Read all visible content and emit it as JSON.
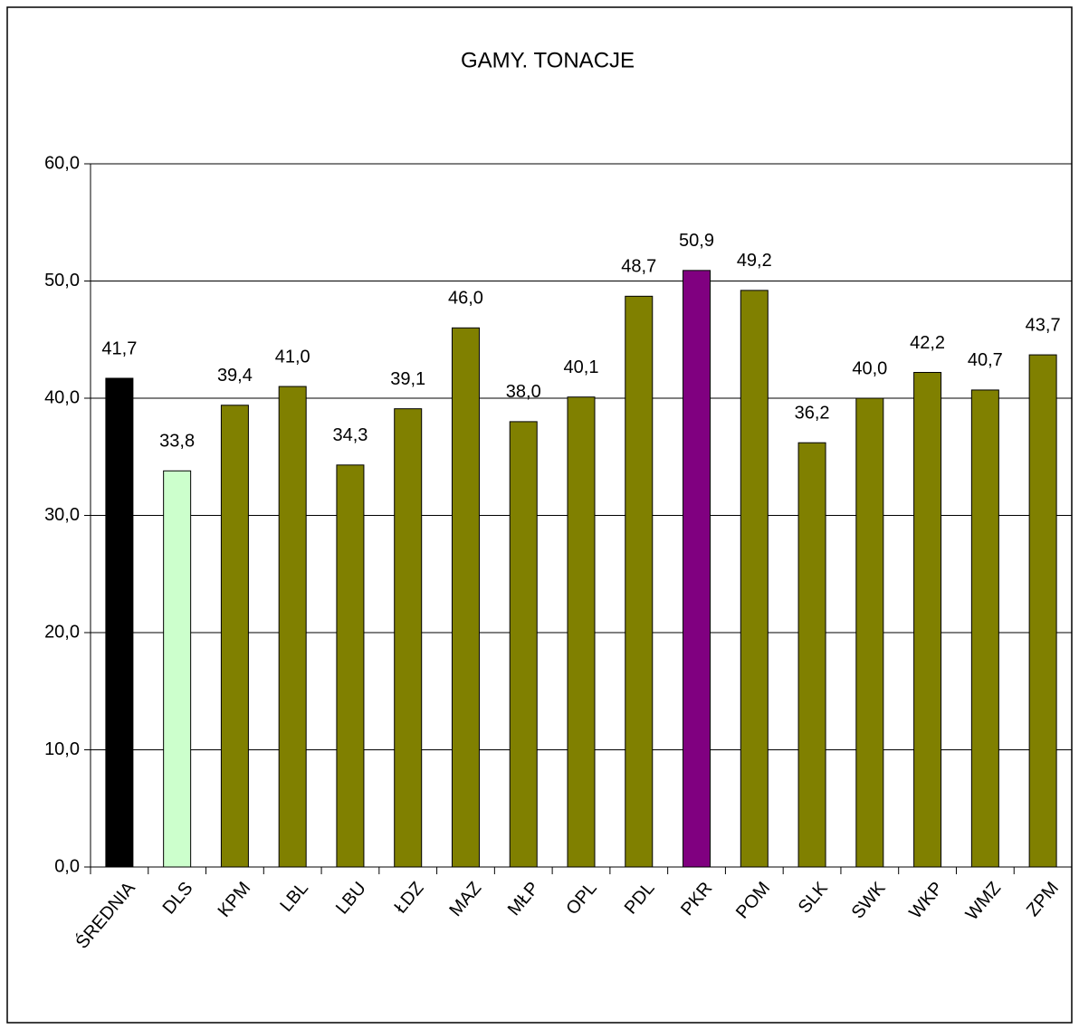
{
  "chart_data": {
    "type": "bar",
    "title": "GAMY. TONACJE",
    "categories": [
      "ŚREDNIA",
      "DLS",
      "KPM",
      "LBL",
      "LBU",
      "ŁDZ",
      "MAZ",
      "MŁP",
      "OPL",
      "PDL",
      "PKR",
      "POM",
      "SLK",
      "SWK",
      "WKP",
      "WMZ",
      "ZPM"
    ],
    "values": [
      41.7,
      33.8,
      39.4,
      41.0,
      34.3,
      39.1,
      46.0,
      38.0,
      40.1,
      48.7,
      50.9,
      49.2,
      36.2,
      40.0,
      42.2,
      40.7,
      43.7
    ],
    "value_labels": [
      "41,7",
      "33,8",
      "39,4",
      "41,0",
      "34,3",
      "39,1",
      "46,0",
      "38,0",
      "40,1",
      "48,7",
      "50,9",
      "49,2",
      "36,2",
      "40,0",
      "42,2",
      "40,7",
      "43,7"
    ],
    "colors": [
      "#000000",
      "#ccffcc",
      "#808000",
      "#808000",
      "#808000",
      "#808000",
      "#808000",
      "#808000",
      "#808000",
      "#808000",
      "#800080",
      "#808000",
      "#808000",
      "#808000",
      "#808000",
      "#808000",
      "#808000"
    ],
    "ylim": [
      0,
      60
    ],
    "yticks": [
      {
        "value": 0,
        "label": "0,0"
      },
      {
        "value": 10,
        "label": "10,0"
      },
      {
        "value": 20,
        "label": "20,0"
      },
      {
        "value": 30,
        "label": "30,0"
      },
      {
        "value": 40,
        "label": "40,0"
      },
      {
        "value": 50,
        "label": "50,0"
      },
      {
        "value": 60,
        "label": "60,0"
      }
    ],
    "grid": true
  }
}
